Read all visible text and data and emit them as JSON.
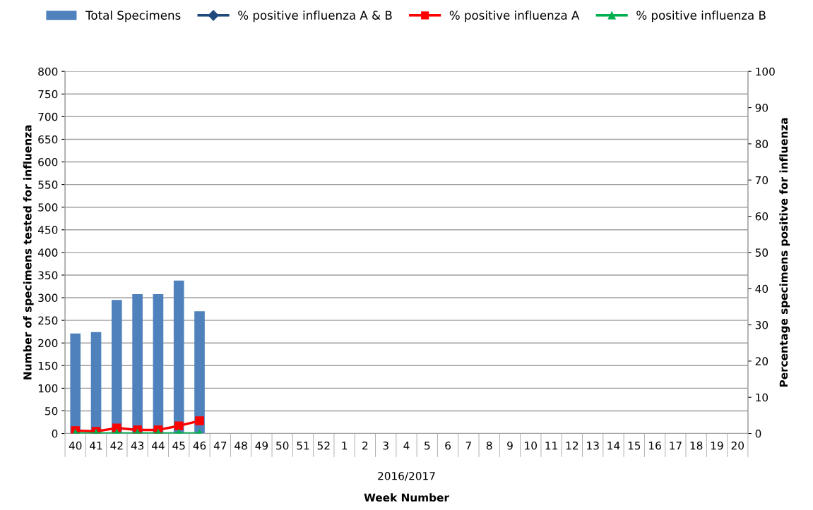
{
  "chart_data": {
    "type": "bar",
    "xlabel": "Week Number",
    "ylabel": "Number of specimens tested for influenza",
    "y2label": "Percentage specimens positive for influenza",
    "categories": [
      "40",
      "41",
      "42",
      "43",
      "44",
      "45",
      "46",
      "47",
      "48",
      "49",
      "50",
      "51",
      "52",
      "1",
      "2",
      "3",
      "4",
      "5",
      "6",
      "7",
      "8",
      "9",
      "10",
      "11",
      "12",
      "13",
      "14",
      "15",
      "16",
      "17",
      "18",
      "19",
      "20"
    ],
    "series": [
      {
        "name": "Total Specimens",
        "color": "#4f81bd",
        "values": [
          221,
          224,
          295,
          308,
          308,
          338,
          270,
          null,
          null,
          null,
          null,
          null,
          null,
          null,
          null,
          null,
          null,
          null,
          null,
          null,
          null,
          null,
          null,
          null,
          null,
          null,
          null,
          null,
          null,
          null,
          null,
          null,
          null
        ]
      },
      {
        "name": "% positive influenza A & B",
        "type": "line",
        "axis": "y2",
        "marker": "diamond",
        "color": "#1f497d",
        "values": [
          null,
          null,
          null,
          null,
          null,
          null,
          null,
          null,
          null,
          null,
          null,
          null,
          null,
          null,
          null,
          null,
          null,
          null,
          null,
          null,
          null,
          null,
          null,
          null,
          null,
          null,
          null,
          null,
          null,
          null,
          null,
          null,
          null
        ]
      },
      {
        "name": "% positive influenza A",
        "type": "line",
        "axis": "y2",
        "marker": "square",
        "color": "#ff0000",
        "values": [
          0.8,
          0.6,
          1.5,
          1.0,
          1.0,
          2.1,
          3.5,
          null,
          null,
          null,
          null,
          null,
          null,
          null,
          null,
          null,
          null,
          null,
          null,
          null,
          null,
          null,
          null,
          null,
          null,
          null,
          null,
          null,
          null,
          null,
          null,
          null,
          null
        ]
      },
      {
        "name": "% positive influenza B",
        "type": "line",
        "axis": "y2",
        "marker": "triangle",
        "color": "#00b050",
        "values": [
          0,
          0,
          0,
          0,
          0,
          0,
          0,
          null,
          null,
          null,
          null,
          null,
          null,
          null,
          null,
          null,
          null,
          null,
          null,
          null,
          null,
          null,
          null,
          null,
          null,
          null,
          null,
          null,
          null,
          null,
          null,
          null,
          null
        ]
      }
    ],
    "ylim": [
      0,
      800
    ],
    "yticks": [
      0,
      50,
      100,
      150,
      200,
      250,
      300,
      350,
      400,
      450,
      500,
      550,
      600,
      650,
      700,
      750,
      800
    ],
    "y2lim": [
      0,
      100
    ],
    "y2ticks": [
      0,
      10,
      20,
      30,
      40,
      50,
      60,
      70,
      80,
      90,
      100
    ],
    "grid": "y",
    "legend": "top",
    "annotations": [
      "2016/2017"
    ]
  }
}
